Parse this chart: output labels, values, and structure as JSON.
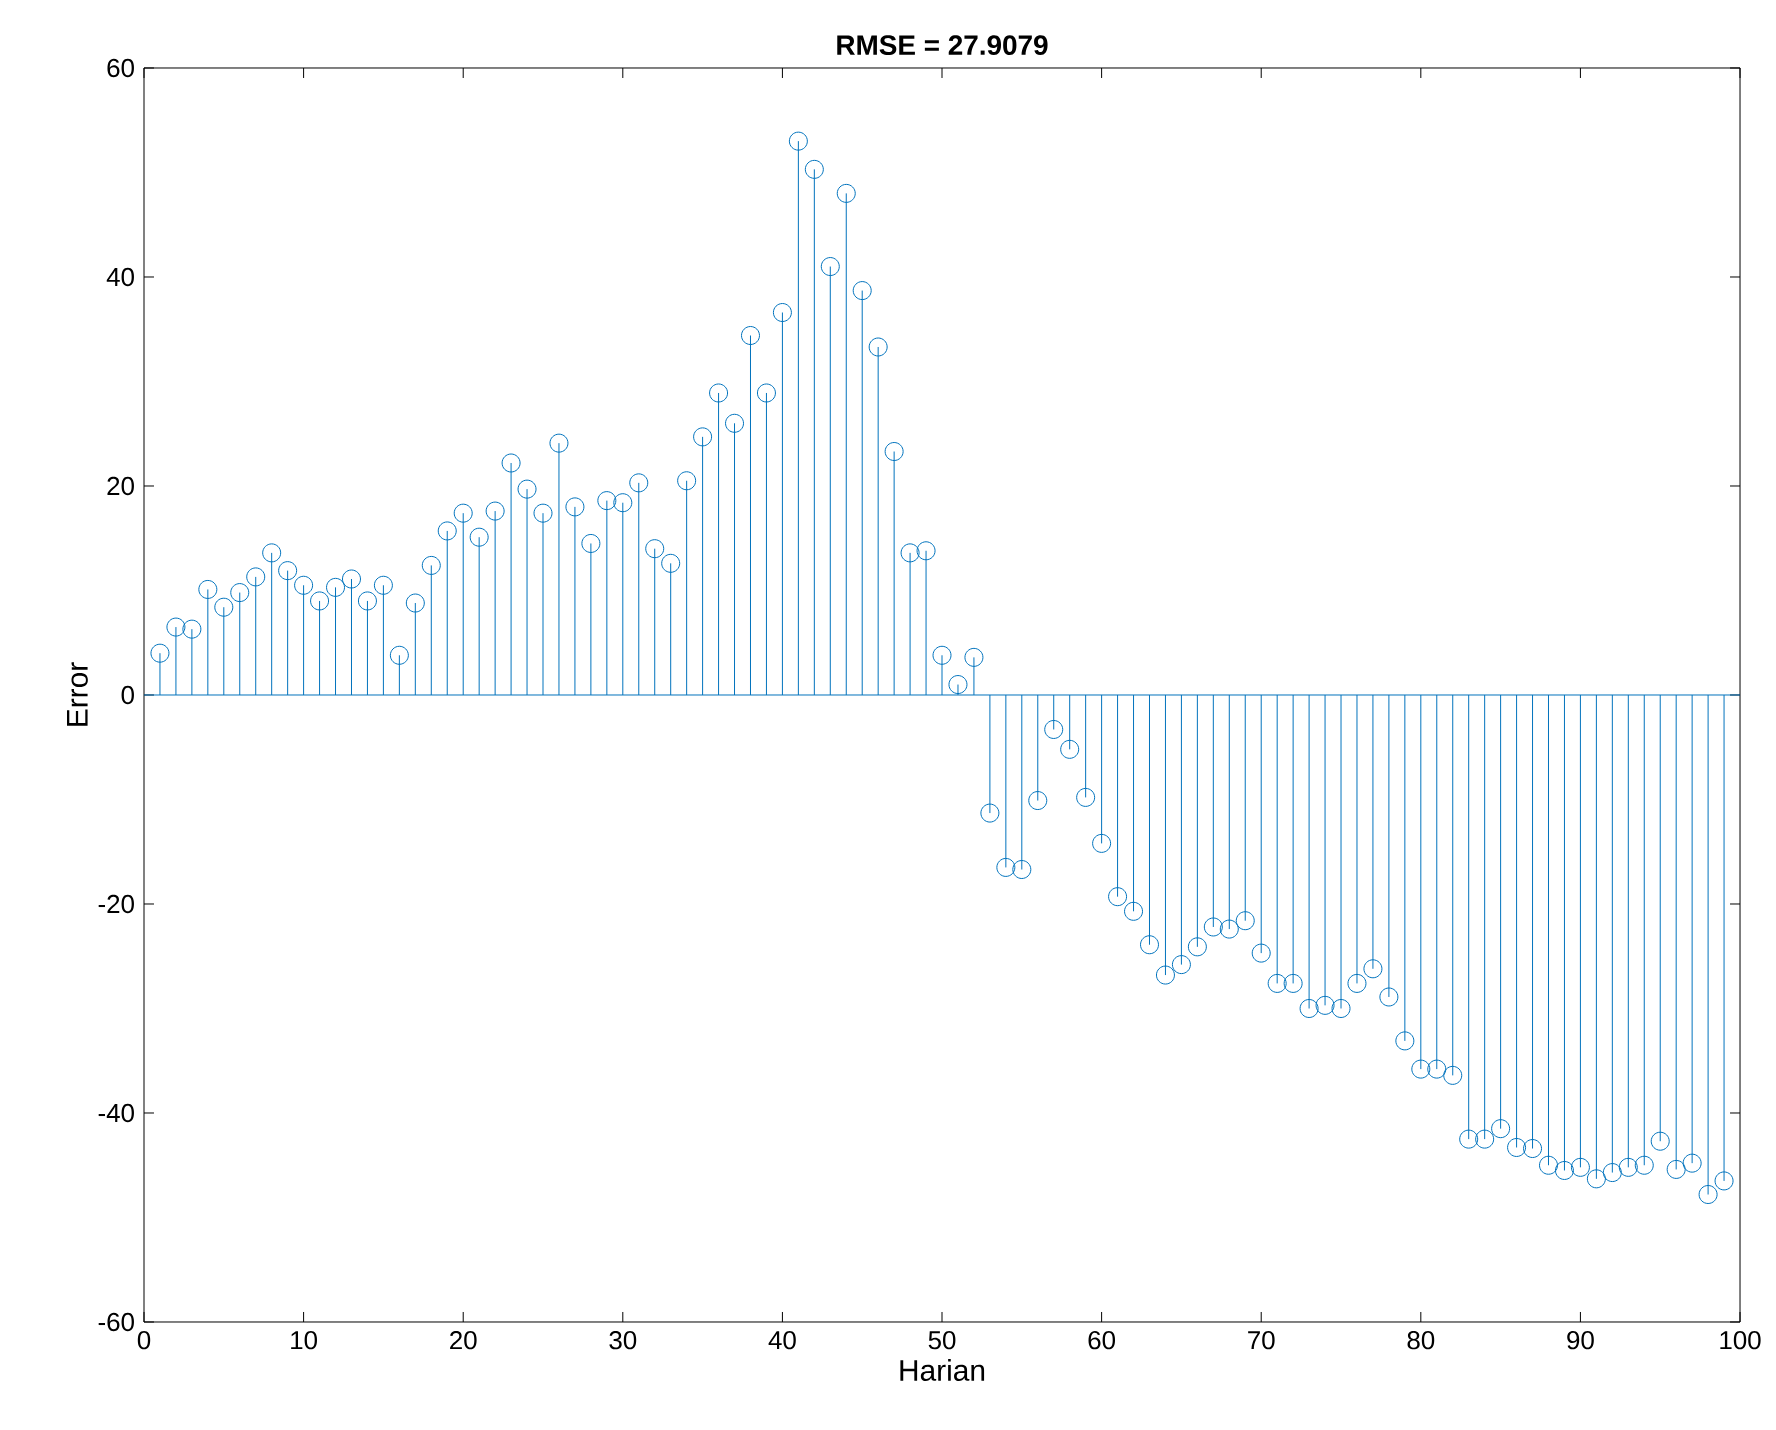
{
  "chart_data": {
    "type": "lollipop",
    "title": "RMSE = 27.9079",
    "xlabel": "Harian",
    "ylabel": "Error",
    "x": [
      1,
      2,
      3,
      4,
      5,
      6,
      7,
      8,
      9,
      10,
      11,
      12,
      13,
      14,
      15,
      16,
      17,
      18,
      19,
      20,
      21,
      22,
      23,
      24,
      25,
      26,
      27,
      28,
      29,
      30,
      31,
      32,
      33,
      34,
      35,
      36,
      37,
      38,
      39,
      40,
      41,
      42,
      43,
      44,
      45,
      46,
      47,
      48,
      49,
      50,
      51,
      52,
      53,
      54,
      55,
      56,
      57,
      58,
      59,
      60,
      61,
      62,
      63,
      64,
      65,
      66,
      67,
      68,
      69,
      70,
      71,
      72,
      73,
      74,
      75,
      76,
      77,
      78,
      79,
      80,
      81,
      82,
      83,
      84,
      85,
      86,
      87,
      88,
      89,
      90,
      91,
      92,
      93,
      94,
      95,
      96,
      97,
      98,
      99
    ],
    "values": [
      4.0,
      6.5,
      6.3,
      10.1,
      8.4,
      9.8,
      11.3,
      13.6,
      11.9,
      10.5,
      9.0,
      10.3,
      11.1,
      9.0,
      10.5,
      3.8,
      8.8,
      12.4,
      15.7,
      17.4,
      15.1,
      17.6,
      22.2,
      19.7,
      17.4,
      24.1,
      18.0,
      14.5,
      18.6,
      18.4,
      20.3,
      14.0,
      12.6,
      20.5,
      24.7,
      28.9,
      26.0,
      34.4,
      28.9,
      36.6,
      53.0,
      50.3,
      41.0,
      48.0,
      38.7,
      33.3,
      23.3,
      13.6,
      13.8,
      3.8,
      1.0,
      3.6,
      -11.3,
      -16.5,
      -16.7,
      -10.1,
      -3.3,
      -5.2,
      -9.8,
      -14.2,
      -19.3,
      -20.7,
      -23.9,
      -26.8,
      -25.8,
      -24.1,
      -22.2,
      -22.4,
      -21.6,
      -24.7,
      -27.6,
      -27.6,
      -30.0,
      -29.7,
      -30.0,
      -27.6,
      -26.2,
      -28.9,
      -33.1,
      -35.8,
      -35.8,
      -36.4,
      -42.5,
      -42.5,
      -41.5,
      -43.3,
      -43.4,
      -45.0,
      -45.5,
      -45.2,
      -46.3,
      -45.7,
      -45.2,
      -45.0,
      -42.7,
      -45.4,
      -44.8,
      -47.8,
      -46.5
    ],
    "color": "#0072bd",
    "marker": "circle",
    "ref_lines": [
      {
        "axis": "y",
        "value": 0,
        "color": "#0072bd"
      }
    ],
    "xlim": [
      0,
      100
    ],
    "ylim": [
      -60,
      60
    ],
    "xticks": [
      0,
      10,
      20,
      30,
      40,
      50,
      60,
      70,
      80,
      90,
      100
    ],
    "yticks": [
      -60,
      -40,
      -20,
      0,
      20,
      40,
      60
    ]
  }
}
